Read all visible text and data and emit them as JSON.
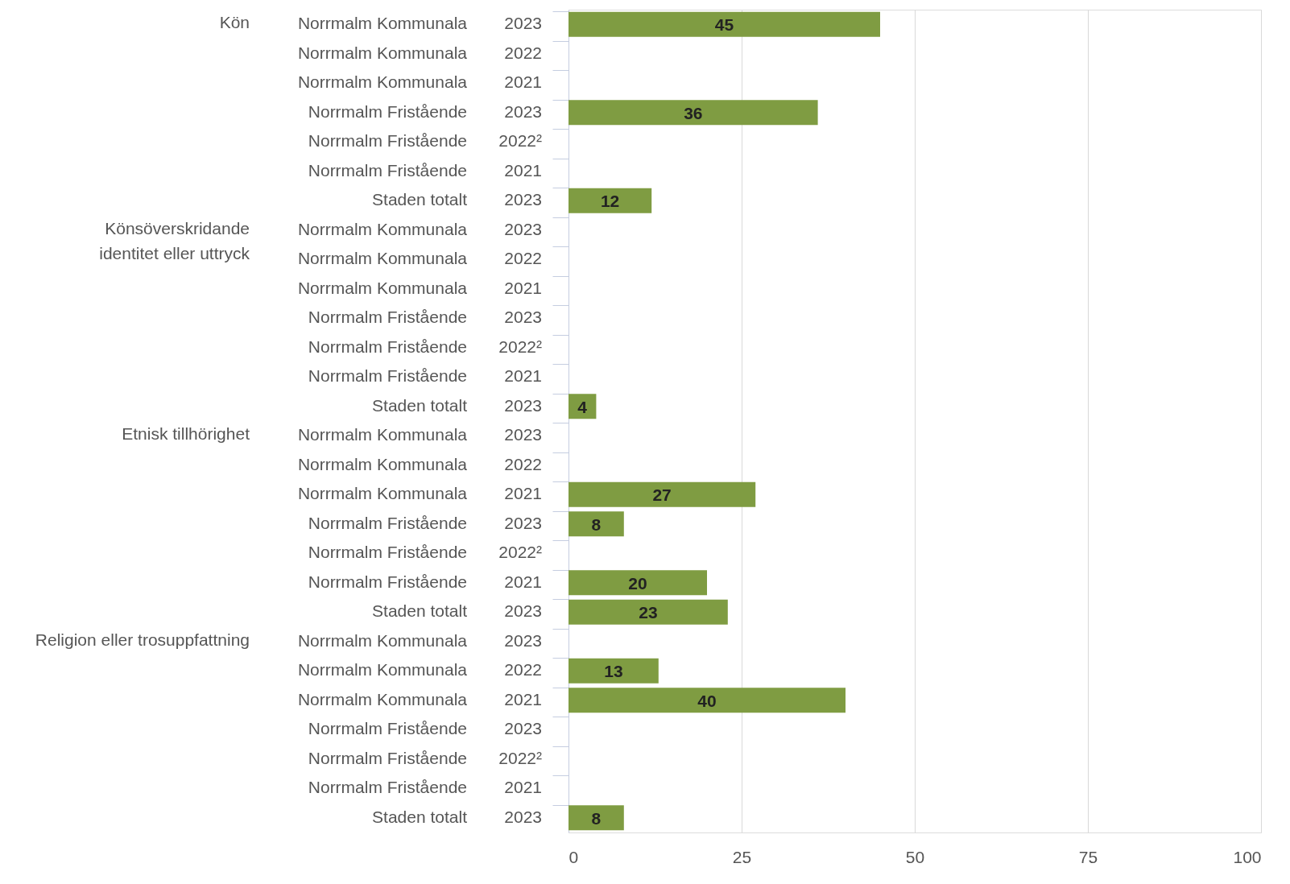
{
  "chart_data": {
    "type": "bar",
    "orientation": "horizontal",
    "categories": [
      "Norrmalm Kommunala 2023",
      "Norrmalm Kommunala 2022",
      "Norrmalm Kommunala 2021",
      "Norrmalm Fristående 2023",
      "Norrmalm Fristående 2022²",
      "Norrmalm Fristående 2021",
      "Staden totalt 2023",
      "Norrmalm Kommunala 2023",
      "Norrmalm Kommunala 2022",
      "Norrmalm Kommunala 2021",
      "Norrmalm Fristående 2023",
      "Norrmalm Fristående 2022²",
      "Norrmalm Fristående 2021",
      "Staden totalt 2023",
      "Norrmalm Kommunala 2023",
      "Norrmalm Kommunala 2022",
      "Norrmalm Kommunala 2021",
      "Norrmalm Fristående 2023",
      "Norrmalm Fristående 2022²",
      "Norrmalm Fristående 2021",
      "Staden totalt 2023",
      "Norrmalm Kommunala 2023",
      "Norrmalm Kommunala 2022",
      "Norrmalm Kommunala 2021",
      "Norrmalm Fristående 2023",
      "Norrmalm Fristående 2022²",
      "Norrmalm Fristående 2021",
      "Staden totalt 2023"
    ],
    "values": [
      45,
      null,
      null,
      36,
      null,
      null,
      12,
      null,
      null,
      null,
      null,
      null,
      null,
      4,
      null,
      null,
      27,
      8,
      null,
      20,
      23,
      null,
      13,
      40,
      null,
      null,
      null,
      8
    ],
    "color": "#7f9c42",
    "annotations": [
      "Kön",
      "Könsöverskridande\nidentitet eller uttryck",
      "Etnisk tillhörighet",
      "Religion eller trosuppfattning"
    ],
    "xlim": [
      0,
      100
    ],
    "xticks": [
      0,
      25,
      50,
      75,
      100
    ],
    "grid": "x",
    "data_labels": true
  }
}
